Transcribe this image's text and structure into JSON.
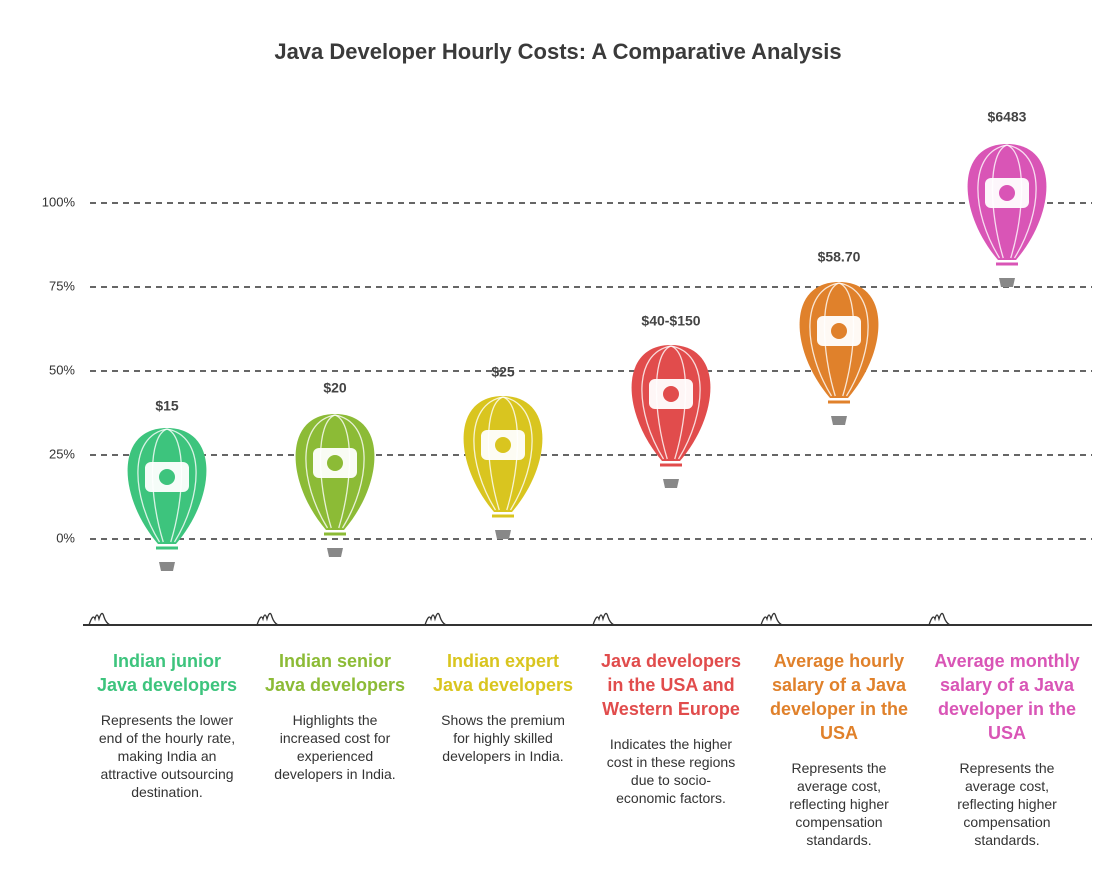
{
  "title": "Java Developer Hourly Costs: A Comparative Analysis",
  "axis": {
    "ticks": [
      "100%",
      "75%",
      "50%",
      "25%",
      "0%"
    ]
  },
  "columns": [
    {
      "price": "$15",
      "title": "Indian junior Java developers",
      "description": "Represents the lower end of the hourly rate, making India an attractive outsourcing destination."
    },
    {
      "price": "$20",
      "title": "Indian senior Java developers",
      "description": "Highlights the increased cost for experienced developers in India."
    },
    {
      "price": "$25",
      "title": "Indian expert Java developers",
      "description": "Shows the premium for highly skilled developers in India."
    },
    {
      "price": "$40-$150",
      "title": "Java developers in the USA and Western Europe",
      "description": "Indicates the higher cost in these regions due to socio-economic factors."
    },
    {
      "price": "$58.70",
      "title": "Average hourly salary of a Java developer in the USA",
      "description": "Represents the average cost, reflecting higher compensation standards."
    },
    {
      "price": "$6483",
      "title": "Average monthly salary of a Java developer in the USA",
      "description": "Represents the average cost, reflecting higher compensation standards."
    }
  ]
}
